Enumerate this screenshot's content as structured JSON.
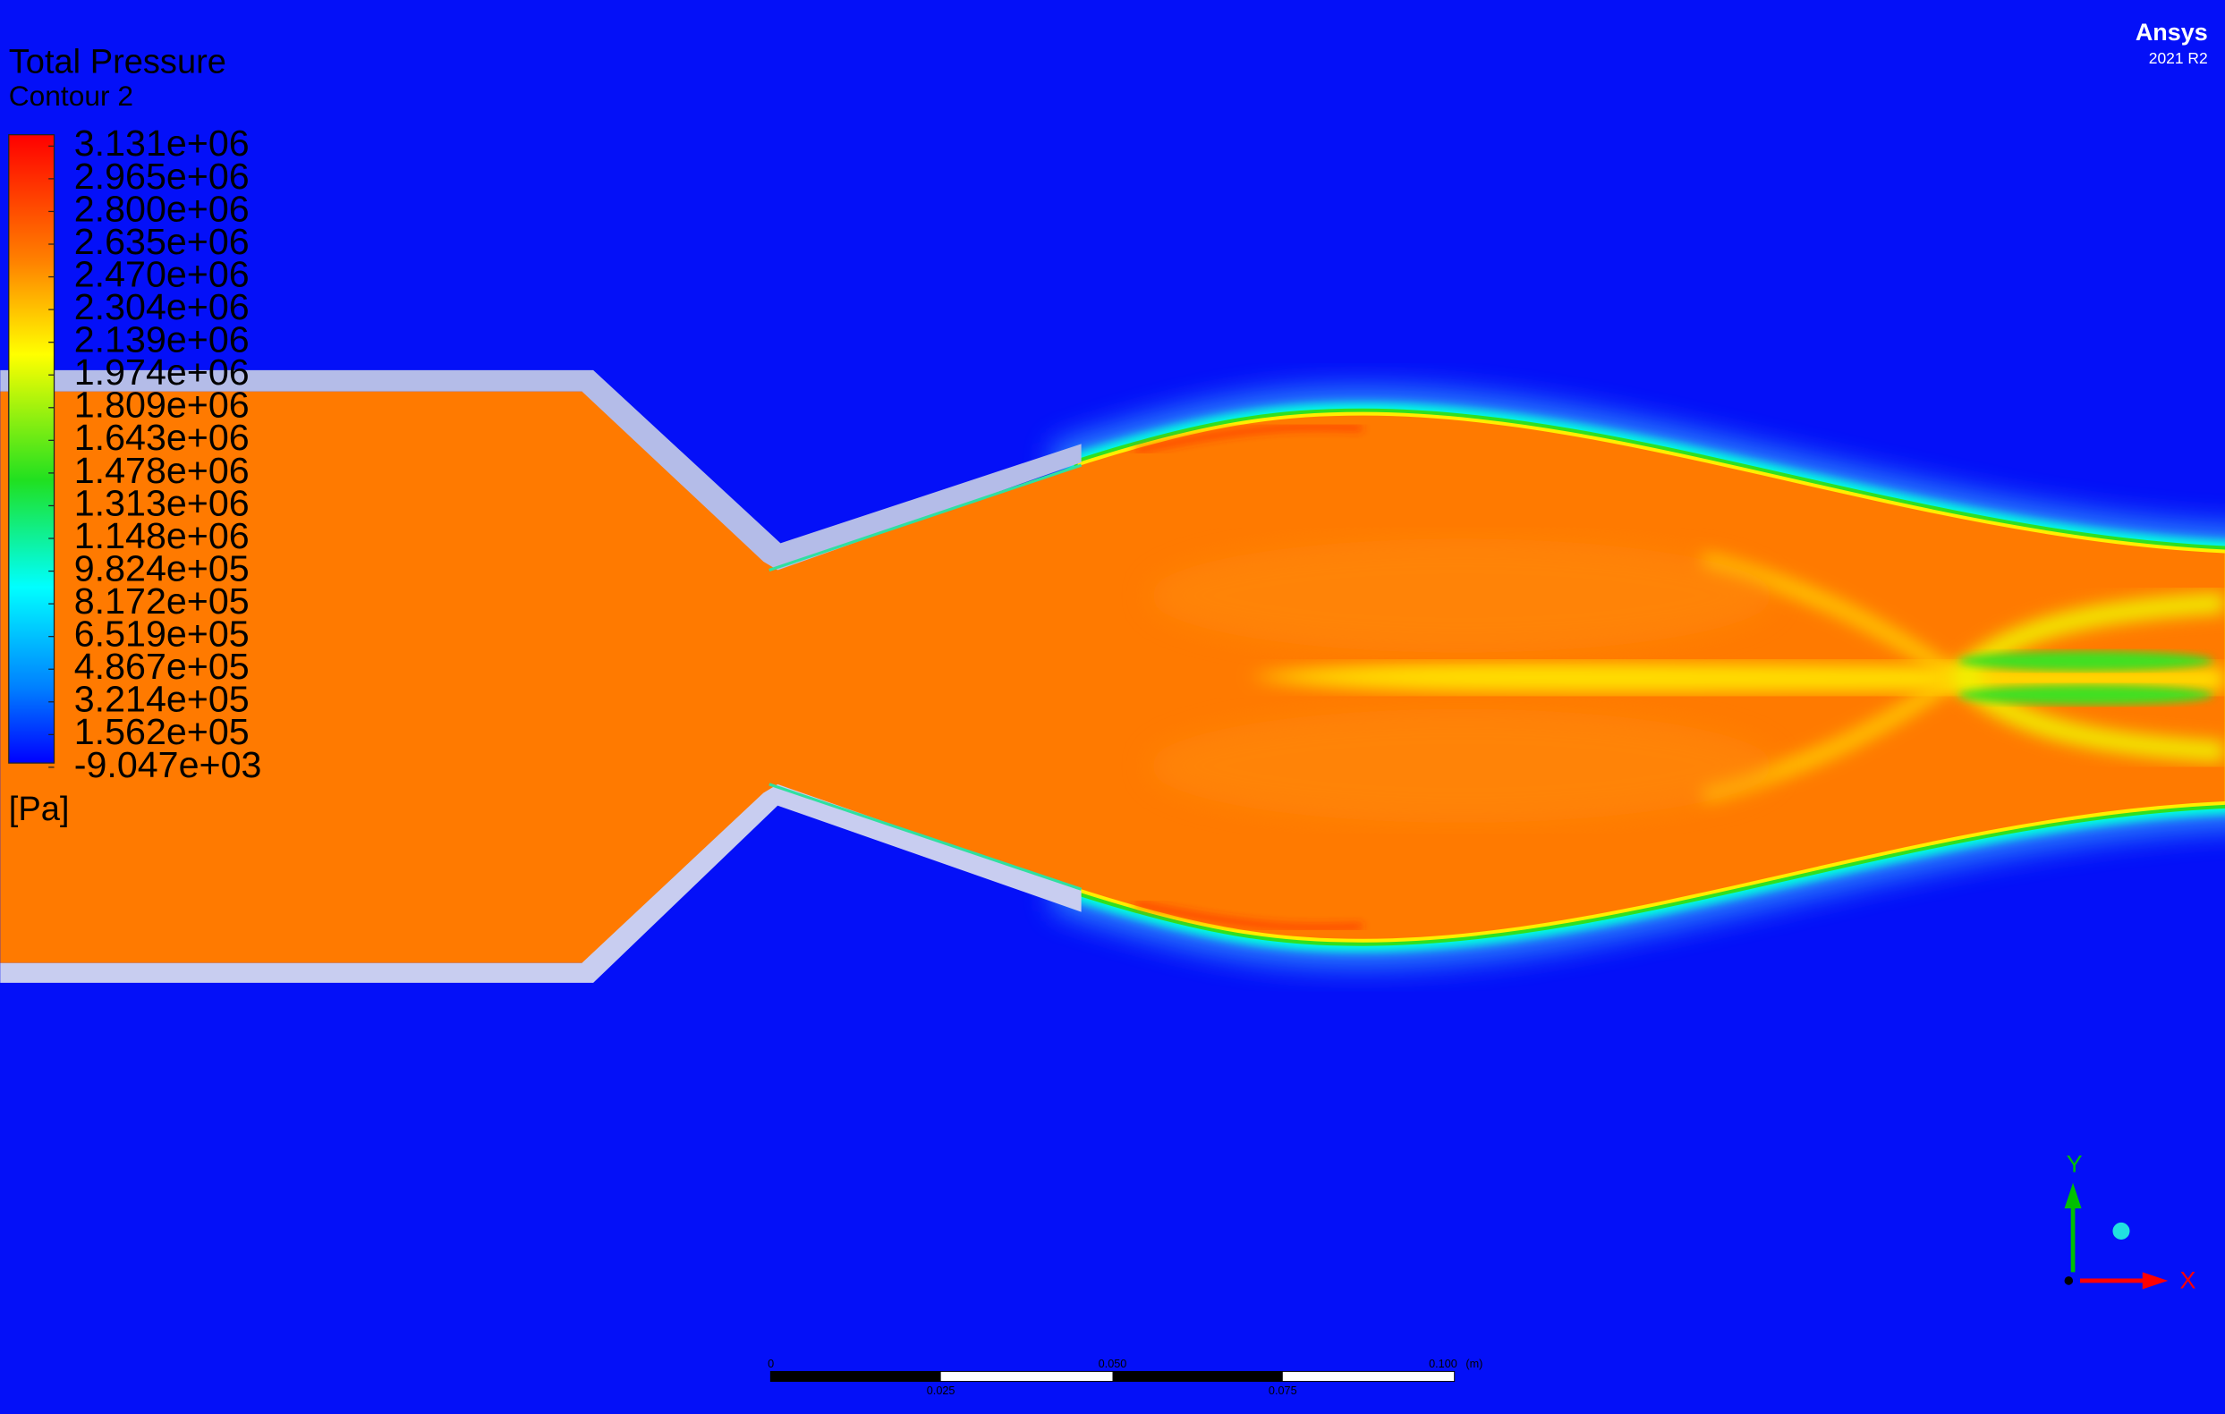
{
  "legend": {
    "title": "Total Pressure",
    "subtitle": "Contour 2",
    "labels": [
      "3.131e+06",
      "2.965e+06",
      "2.800e+06",
      "2.635e+06",
      "2.470e+06",
      "2.304e+06",
      "2.139e+06",
      "1.974e+06",
      "1.809e+06",
      "1.643e+06",
      "1.478e+06",
      "1.313e+06",
      "1.148e+06",
      "9.824e+05",
      "8.172e+05",
      "6.519e+05",
      "4.867e+05",
      "3.214e+05",
      "1.562e+05",
      "-9.047e+03"
    ],
    "unit": "[Pa]"
  },
  "branding": {
    "name": "Ansys",
    "version": "2021 R2"
  },
  "scale_bar": {
    "top_labels": [
      "0",
      "0.050",
      "0.100"
    ],
    "unit": "(m)",
    "bottom_labels": [
      "0.025",
      "0.075"
    ]
  },
  "axes": {
    "y": "Y",
    "x": "X"
  }
}
